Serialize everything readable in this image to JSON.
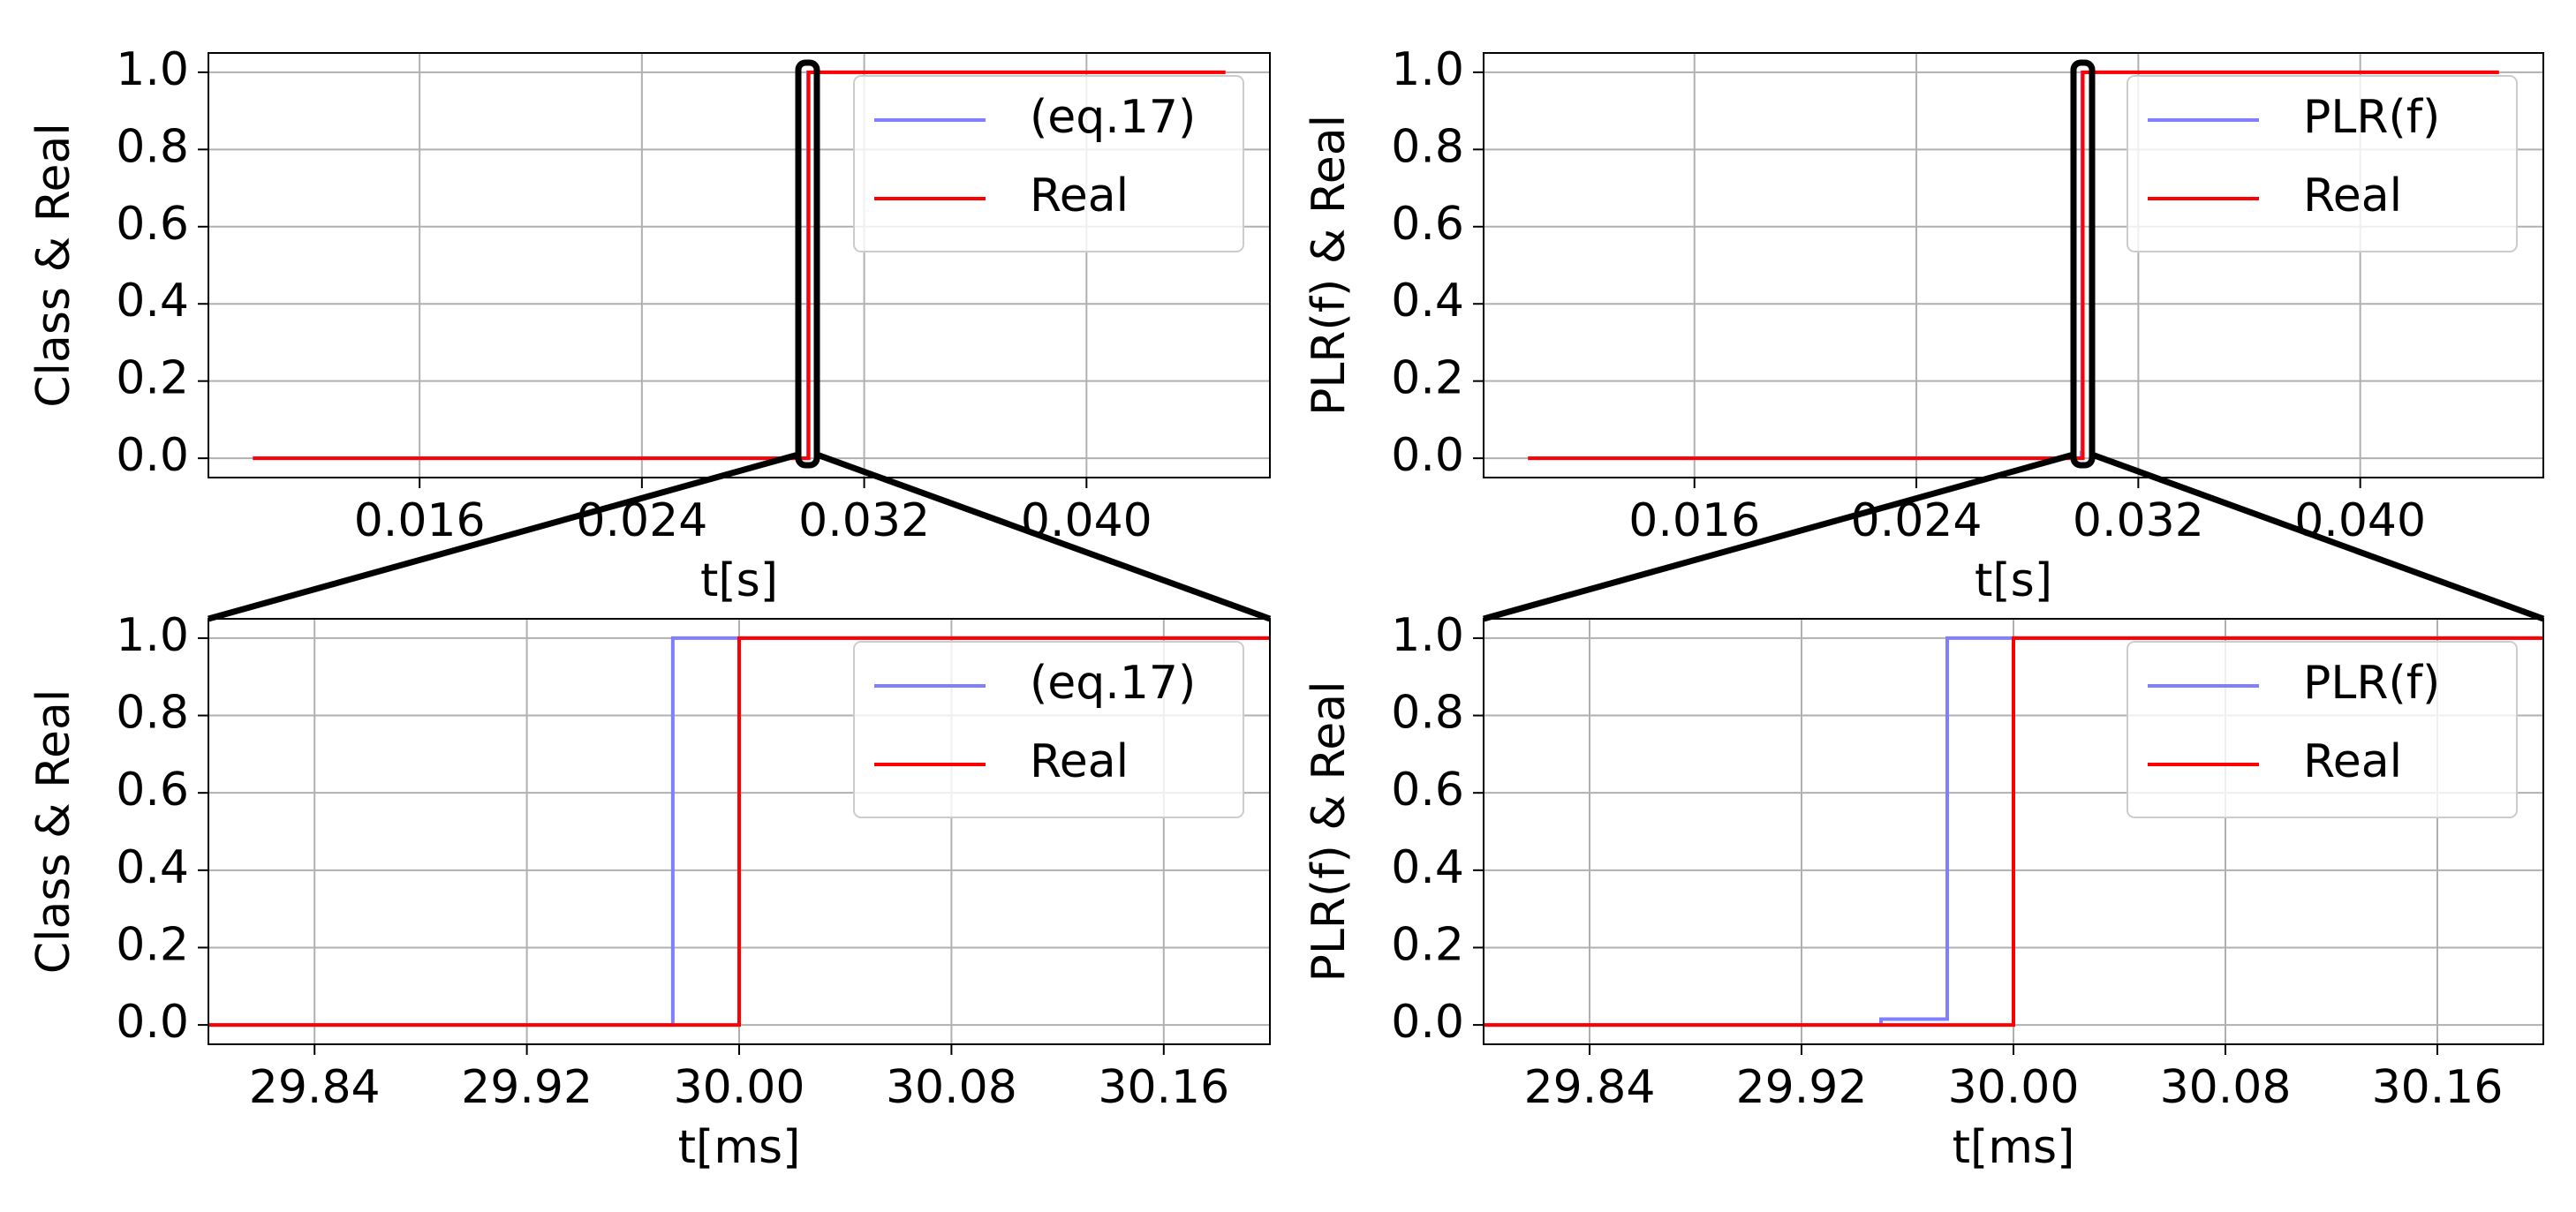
{
  "chart_data": [
    {
      "type": "line",
      "xlabel": "t[s]",
      "ylabel": "Class & Real",
      "xlim": [
        0.0084,
        0.0466
      ],
      "ylim": [
        -0.05,
        1.05
      ],
      "xticks": [
        0.016,
        0.024,
        0.032,
        {
          "value": 0.04,
          "label": "0.040"
        }
      ],
      "yticks": [
        {
          "value": 0,
          "label": "0.0"
        },
        0.2,
        0.4,
        0.6,
        0.8,
        {
          "value": 1,
          "label": "1.0"
        }
      ],
      "grid": true,
      "legend": "upper right",
      "series": [
        {
          "name": "(eq.17)",
          "color": "#7f7fff",
          "x": [
            0.01,
            0.029975,
            0.029975,
            0.045
          ],
          "values": [
            0,
            0,
            1,
            1
          ]
        },
        {
          "name": "Real",
          "color": "#ff0000",
          "x": [
            0.01,
            0.03,
            0.03,
            0.045
          ],
          "values": [
            0,
            0,
            1,
            1
          ]
        }
      ]
    },
    {
      "type": "line",
      "xlabel": "t[s]",
      "ylabel": "PLR(f) & Real",
      "xlim": [
        0.0084,
        0.0466
      ],
      "ylim": [
        -0.05,
        1.05
      ],
      "xticks": [
        0.016,
        0.024,
        0.032,
        {
          "value": 0.04,
          "label": "0.040"
        }
      ],
      "yticks": [
        {
          "value": 0,
          "label": "0.0"
        },
        0.2,
        0.4,
        0.6,
        0.8,
        {
          "value": 1,
          "label": "1.0"
        }
      ],
      "grid": true,
      "legend": "upper right",
      "series": [
        {
          "name": "PLR(f)",
          "color": "#7f7fff",
          "x": [
            0.01,
            0.02995,
            0.02995,
            0.029975,
            0.029975,
            0.045
          ],
          "values": [
            0,
            0,
            0.015,
            0.015,
            1,
            1
          ]
        },
        {
          "name": "Real",
          "color": "#ff0000",
          "x": [
            0.01,
            0.03,
            0.03,
            0.045
          ],
          "values": [
            0,
            0,
            1,
            1
          ]
        }
      ]
    },
    {
      "type": "line",
      "xlabel": "t[ms]",
      "ylabel": "Class & Real",
      "xlim": [
        29.8,
        30.2
      ],
      "ylim": [
        -0.05,
        1.05
      ],
      "xticks": [
        29.84,
        29.92,
        {
          "value": 30,
          "label": "30.00"
        },
        30.08,
        30.16
      ],
      "yticks": [
        {
          "value": 0,
          "label": "0.0"
        },
        0.2,
        0.4,
        0.6,
        0.8,
        {
          "value": 1,
          "label": "1.0"
        }
      ],
      "grid": true,
      "legend": "upper right",
      "series": [
        {
          "name": "(eq.17)",
          "color": "#7f7fff",
          "x": [
            29.8,
            29.975,
            29.975,
            30.2
          ],
          "values": [
            0,
            0,
            1,
            1
          ]
        },
        {
          "name": "Real",
          "color": "#ff0000",
          "x": [
            29.8,
            30,
            30,
            30.2
          ],
          "values": [
            0,
            0,
            1,
            1
          ]
        }
      ]
    },
    {
      "type": "line",
      "xlabel": "t[ms]",
      "ylabel": "PLR(f) & Real",
      "xlim": [
        29.8,
        30.2
      ],
      "ylim": [
        -0.05,
        1.05
      ],
      "xticks": [
        29.84,
        29.92,
        {
          "value": 30,
          "label": "30.00"
        },
        30.08,
        30.16
      ],
      "yticks": [
        {
          "value": 0,
          "label": "0.0"
        },
        0.2,
        0.4,
        0.6,
        0.8,
        {
          "value": 1,
          "label": "1.0"
        }
      ],
      "grid": true,
      "legend": "upper right",
      "series": [
        {
          "name": "PLR(f)",
          "color": "#7f7fff",
          "x": [
            29.8,
            29.95,
            29.95,
            29.975,
            29.975,
            30.2
          ],
          "values": [
            0,
            0,
            0.015,
            0.015,
            1,
            1
          ]
        },
        {
          "name": "Real",
          "color": "#ff0000",
          "x": [
            29.8,
            30,
            30,
            30.2
          ],
          "values": [
            0,
            0,
            1,
            1
          ]
        }
      ]
    }
  ]
}
